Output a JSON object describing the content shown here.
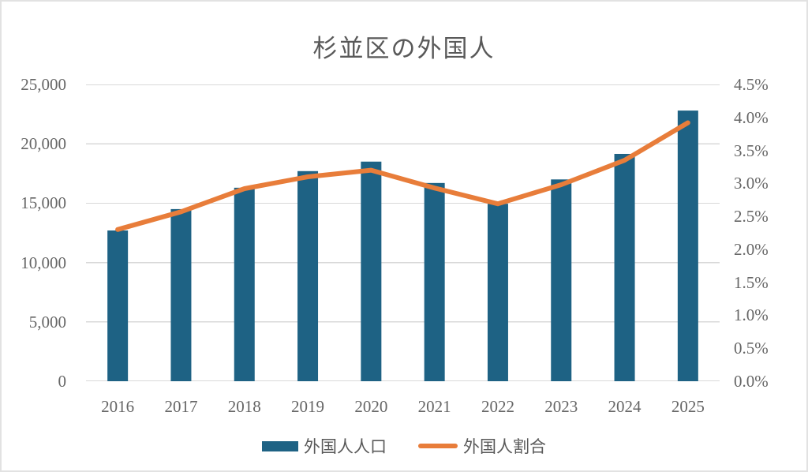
{
  "title": "杉並区の外国人",
  "colors": {
    "bar": "#1E6284",
    "line": "#E87D3A",
    "grid": "#D9D9D9",
    "axis_text": "#666666",
    "title_text": "#595959",
    "frame": "#E2E2E2"
  },
  "chart_data": {
    "type": "bar+line combo",
    "title": "杉並区の外国人",
    "categories": [
      "2016",
      "2017",
      "2018",
      "2019",
      "2020",
      "2021",
      "2022",
      "2023",
      "2024",
      "2025"
    ],
    "series": [
      {
        "name": "外国人人口",
        "type": "bar",
        "axis": "left",
        "values": [
          12700,
          14500,
          16300,
          17700,
          18500,
          16700,
          14950,
          17000,
          19150,
          22800
        ]
      },
      {
        "name": "外国人割合",
        "type": "line",
        "axis": "right",
        "unit": "%",
        "values": [
          2.3,
          2.57,
          2.92,
          3.1,
          3.2,
          2.93,
          2.69,
          2.98,
          3.35,
          3.92
        ]
      }
    ],
    "left_axis": {
      "min": 0,
      "max": 25000,
      "step": 5000,
      "tick_labels": [
        "0",
        "5,000",
        "10,000",
        "15,000",
        "20,000",
        "25,000"
      ]
    },
    "right_axis": {
      "min": 0,
      "max": 4.5,
      "step": 0.5,
      "tick_labels": [
        "0.0%",
        "0.5%",
        "1.0%",
        "1.5%",
        "2.0%",
        "2.5%",
        "3.0%",
        "3.5%",
        "4.0%",
        "4.5%"
      ]
    },
    "grid": true,
    "legend_position": "bottom"
  }
}
